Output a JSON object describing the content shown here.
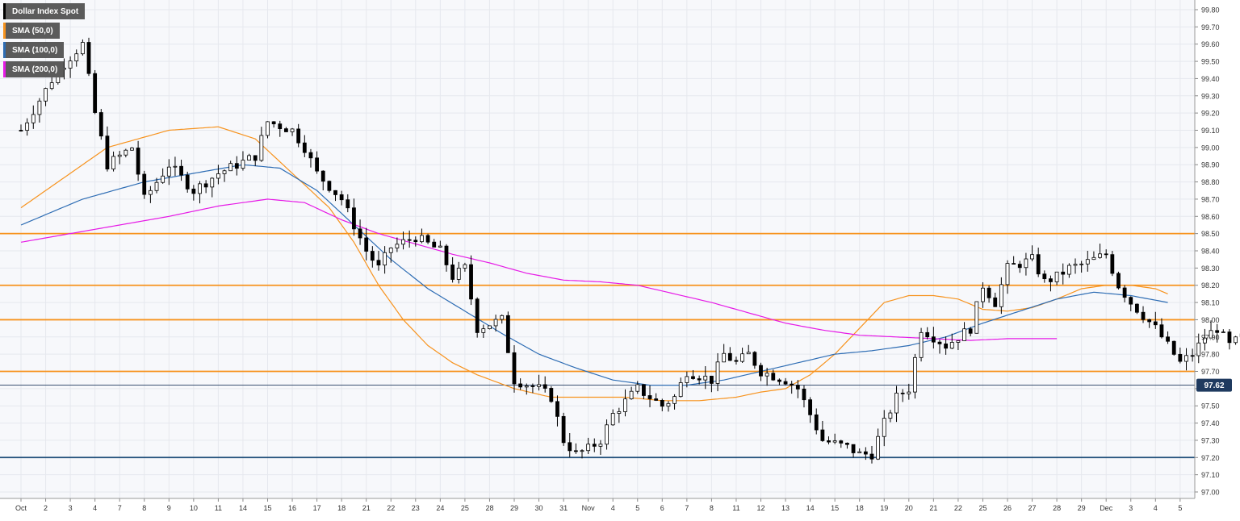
{
  "chart_data": {
    "type": "candlestick",
    "title": "Dollar Index Spot",
    "last_price": "97.62",
    "y_axis": {
      "min": 97.0,
      "max": 99.8,
      "tick_labels": [
        "97.00",
        "97.10",
        "97.20",
        "97.30",
        "97.40",
        "97.50",
        "97.60",
        "97.70",
        "97.80",
        "97.90",
        "98.00",
        "98.10",
        "98.20",
        "98.30",
        "98.40",
        "98.50",
        "98.60",
        "98.70",
        "98.80",
        "98.90",
        "99.00",
        "99.10",
        "99.20",
        "99.30",
        "99.40",
        "99.50",
        "99.60",
        "99.70",
        "99.80"
      ]
    },
    "x_axis": {
      "tick_labels": [
        "Oct",
        "2",
        "3",
        "4",
        "7",
        "8",
        "9",
        "10",
        "11",
        "14",
        "15",
        "16",
        "17",
        "18",
        "21",
        "22",
        "23",
        "24",
        "25",
        "28",
        "29",
        "30",
        "31",
        "Nov",
        "4",
        "5",
        "6",
        "7",
        "8",
        "11",
        "12",
        "13",
        "14",
        "15",
        "18",
        "19",
        "20",
        "21",
        "22",
        "25",
        "26",
        "27",
        "28",
        "29",
        "Dec",
        "3",
        "4",
        "5"
      ]
    },
    "legend": [
      {
        "label": "Dollar Index Spot",
        "color": "#000000"
      },
      {
        "label": "SMA (50,0)",
        "color": "#f7931e"
      },
      {
        "label": "SMA (100,0)",
        "color": "#2e6db4"
      },
      {
        "label": "SMA (200,0)",
        "color": "#e61ae6"
      }
    ],
    "horizontal_levels": [
      {
        "value": 98.5,
        "color": "#f7931e"
      },
      {
        "value": 98.2,
        "color": "#f7931e"
      },
      {
        "value": 98.0,
        "color": "#f7931e"
      },
      {
        "value": 97.7,
        "color": "#f7931e"
      },
      {
        "value": 97.2,
        "color": "#1f4e79"
      },
      {
        "value": 97.62,
        "color": "#1f3a5f"
      }
    ],
    "price_path": [
      [
        0,
        99.1
      ],
      [
        3,
        99.45
      ],
      [
        5,
        99.6
      ],
      [
        6,
        99.2
      ],
      [
        7,
        98.9
      ],
      [
        9,
        99.0
      ],
      [
        10,
        98.7
      ],
      [
        12,
        98.9
      ],
      [
        14,
        98.75
      ],
      [
        16,
        98.85
      ],
      [
        19,
        98.95
      ],
      [
        20,
        99.15
      ],
      [
        22,
        99.1
      ],
      [
        23,
        99.0
      ],
      [
        24,
        98.85
      ],
      [
        26,
        98.7
      ],
      [
        28,
        98.4
      ],
      [
        29,
        98.3
      ],
      [
        30,
        98.42
      ],
      [
        31,
        98.45
      ],
      [
        32,
        98.48
      ],
      [
        34,
        98.4
      ],
      [
        35,
        98.25
      ],
      [
        36,
        98.3
      ],
      [
        37,
        97.95
      ],
      [
        39,
        98.0
      ],
      [
        40,
        97.65
      ],
      [
        42,
        97.6
      ],
      [
        43,
        97.55
      ],
      [
        44,
        97.3
      ],
      [
        45,
        97.22
      ],
      [
        46,
        97.25
      ],
      [
        47,
        97.3
      ],
      [
        48,
        97.45
      ],
      [
        50,
        97.6
      ],
      [
        52,
        97.5
      ],
      [
        53,
        97.55
      ],
      [
        54,
        97.7
      ],
      [
        56,
        97.65
      ],
      [
        57,
        97.8
      ],
      [
        58,
        97.75
      ],
      [
        59,
        97.8
      ],
      [
        60,
        97.7
      ],
      [
        62,
        97.65
      ],
      [
        63,
        97.6
      ],
      [
        64,
        97.45
      ],
      [
        65,
        97.3
      ],
      [
        66,
        97.28
      ],
      [
        67,
        97.26
      ],
      [
        68,
        97.22
      ],
      [
        69,
        97.22
      ],
      [
        70,
        97.4
      ],
      [
        71,
        97.55
      ],
      [
        72,
        97.6
      ],
      [
        73,
        97.95
      ],
      [
        75,
        97.85
      ],
      [
        77,
        97.95
      ],
      [
        78,
        98.2
      ],
      [
        79,
        98.1
      ],
      [
        80,
        98.3
      ],
      [
        82,
        98.35
      ],
      [
        83,
        98.22
      ],
      [
        84,
        98.25
      ],
      [
        85,
        98.3
      ],
      [
        86,
        98.32
      ],
      [
        87,
        98.35
      ],
      [
        88,
        98.38
      ],
      [
        89,
        98.2
      ],
      [
        90,
        98.1
      ],
      [
        92,
        97.95
      ],
      [
        93,
        97.85
      ],
      [
        94,
        97.75
      ],
      [
        95,
        97.8
      ],
      [
        96,
        97.9
      ],
      [
        97,
        97.95
      ],
      [
        98,
        97.85
      ],
      [
        99,
        97.9
      ],
      [
        100,
        97.95
      ],
      [
        101,
        98.25
      ],
      [
        103,
        98.3
      ],
      [
        104,
        98.32
      ],
      [
        106,
        98.35
      ],
      [
        108,
        98.38
      ],
      [
        110,
        98.3
      ],
      [
        111,
        98.25
      ],
      [
        112,
        98.35
      ],
      [
        113,
        97.95
      ],
      [
        114,
        97.85
      ],
      [
        115,
        97.8
      ],
      [
        117,
        97.72
      ],
      [
        118,
        97.7
      ],
      [
        119,
        97.6
      ]
    ],
    "sma50": [
      [
        0,
        98.65
      ],
      [
        7,
        99.0
      ],
      [
        12,
        99.1
      ],
      [
        16,
        99.12
      ],
      [
        19,
        99.05
      ],
      [
        22,
        98.85
      ],
      [
        25,
        98.65
      ],
      [
        27,
        98.45
      ],
      [
        29,
        98.2
      ],
      [
        31,
        98.0
      ],
      [
        33,
        97.85
      ],
      [
        35,
        97.75
      ],
      [
        37,
        97.68
      ],
      [
        40,
        97.6
      ],
      [
        43,
        97.55
      ],
      [
        46,
        97.55
      ],
      [
        49,
        97.55
      ],
      [
        52,
        97.53
      ],
      [
        55,
        97.53
      ],
      [
        58,
        97.55
      ],
      [
        60,
        97.58
      ],
      [
        62,
        97.6
      ],
      [
        64,
        97.68
      ],
      [
        66,
        97.8
      ],
      [
        68,
        97.95
      ],
      [
        70,
        98.1
      ],
      [
        72,
        98.14
      ],
      [
        74,
        98.14
      ],
      [
        76,
        98.12
      ],
      [
        78,
        98.06
      ],
      [
        80,
        98.05
      ],
      [
        82,
        98.07
      ],
      [
        84,
        98.12
      ],
      [
        86,
        98.18
      ],
      [
        88,
        98.2
      ],
      [
        90,
        98.2
      ],
      [
        92,
        98.18
      ],
      [
        93,
        98.15
      ]
    ],
    "sma100": [
      [
        0,
        98.55
      ],
      [
        5,
        98.7
      ],
      [
        10,
        98.8
      ],
      [
        14,
        98.85
      ],
      [
        18,
        98.9
      ],
      [
        21,
        98.88
      ],
      [
        24,
        98.75
      ],
      [
        27,
        98.55
      ],
      [
        30,
        98.35
      ],
      [
        33,
        98.18
      ],
      [
        36,
        98.05
      ],
      [
        39,
        97.92
      ],
      [
        42,
        97.8
      ],
      [
        45,
        97.72
      ],
      [
        48,
        97.65
      ],
      [
        51,
        97.62
      ],
      [
        54,
        97.62
      ],
      [
        57,
        97.65
      ],
      [
        60,
        97.7
      ],
      [
        63,
        97.75
      ],
      [
        66,
        97.8
      ],
      [
        69,
        97.82
      ],
      [
        72,
        97.85
      ],
      [
        75,
        97.9
      ],
      [
        78,
        97.98
      ],
      [
        81,
        98.05
      ],
      [
        84,
        98.12
      ],
      [
        87,
        98.16
      ],
      [
        90,
        98.14
      ],
      [
        93,
        98.1
      ]
    ],
    "sma200": [
      [
        0,
        98.45
      ],
      [
        4,
        98.5
      ],
      [
        8,
        98.55
      ],
      [
        12,
        98.6
      ],
      [
        16,
        98.66
      ],
      [
        20,
        98.7
      ],
      [
        23,
        98.68
      ],
      [
        26,
        98.58
      ],
      [
        29,
        98.5
      ],
      [
        32,
        98.44
      ],
      [
        35,
        98.38
      ],
      [
        38,
        98.33
      ],
      [
        41,
        98.27
      ],
      [
        44,
        98.23
      ],
      [
        47,
        98.22
      ],
      [
        50,
        98.2
      ],
      [
        53,
        98.15
      ],
      [
        56,
        98.1
      ],
      [
        59,
        98.04
      ],
      [
        62,
        97.98
      ],
      [
        65,
        97.94
      ],
      [
        68,
        97.91
      ],
      [
        71,
        97.9
      ],
      [
        74,
        97.89
      ],
      [
        77,
        97.88
      ],
      [
        80,
        97.89
      ],
      [
        84,
        97.89
      ]
    ]
  }
}
